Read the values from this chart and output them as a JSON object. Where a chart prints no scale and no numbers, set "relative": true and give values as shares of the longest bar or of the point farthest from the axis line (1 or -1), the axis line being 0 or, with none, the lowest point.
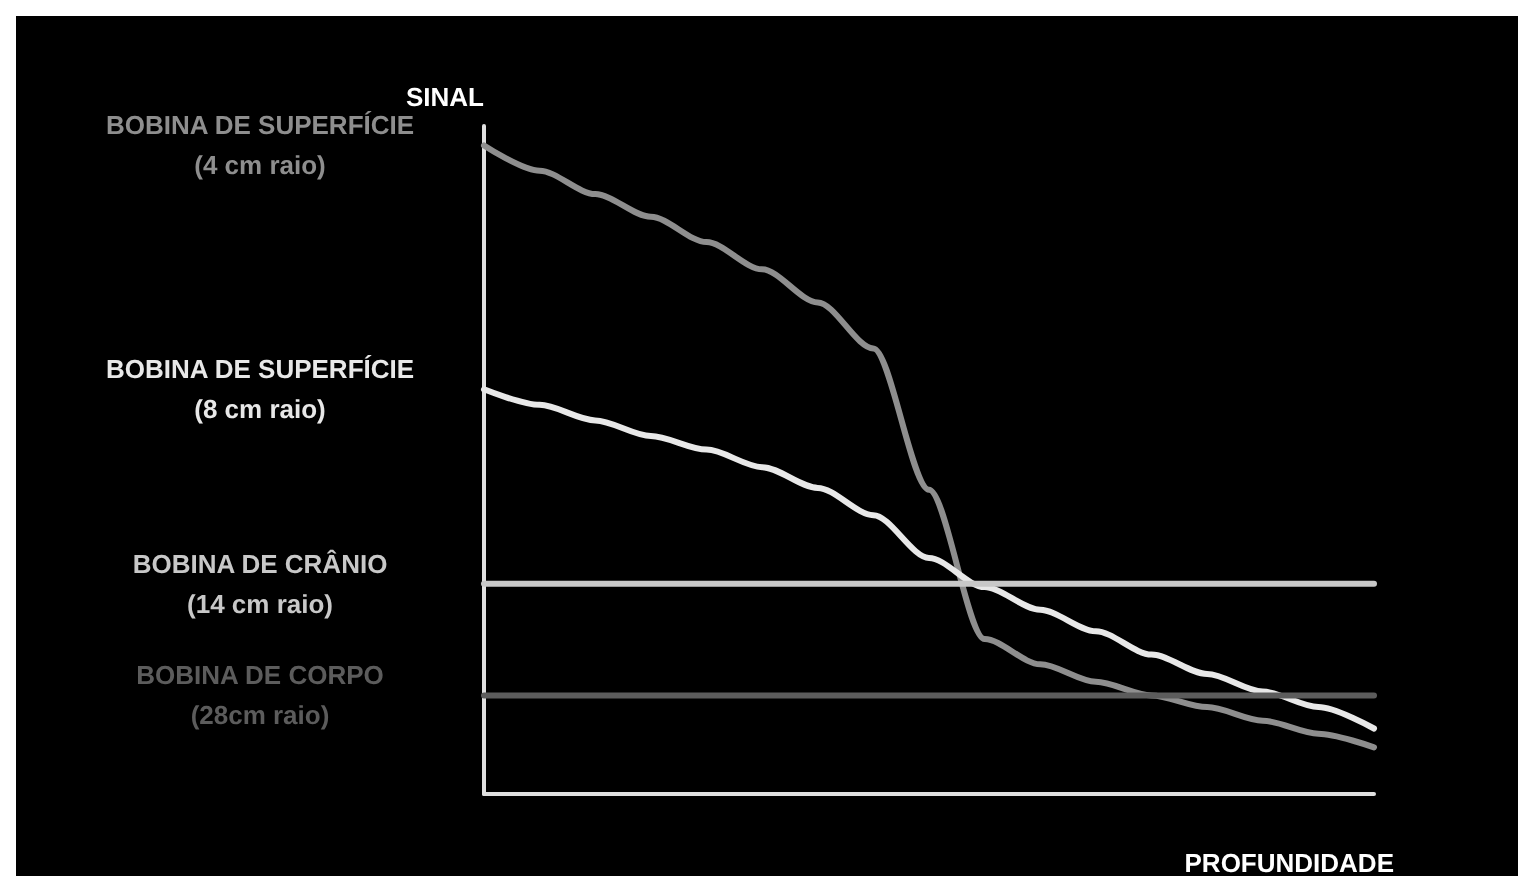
{
  "chart_data": {
    "type": "line",
    "relative": true,
    "xlabel": "PROFUNDIDADE",
    "ylabel": "SINAL",
    "categories": [
      null,
      null,
      null,
      null,
      null,
      null,
      null,
      null,
      null,
      null,
      null,
      null,
      null,
      null,
      null,
      null,
      null
    ],
    "series": [
      {
        "name": "BOBINA DE SUPERFÍCIE\n(4 cm raio)",
        "color": "#8e8e8e",
        "values": [
          1,
          0.961,
          0.925,
          0.89,
          0.851,
          0.809,
          0.758,
          0.687,
          0.469,
          0.239,
          0.2,
          0.173,
          0.152,
          0.134,
          0.113,
          0.093,
          0.072
        ]
      },
      {
        "name": "BOBINA DE SUPERFÍCIE\n(8 cm raio)",
        "color": "#e8e8e8",
        "values": [
          0.624,
          0.6,
          0.576,
          0.552,
          0.531,
          0.504,
          0.472,
          0.43,
          0.364,
          0.319,
          0.284,
          0.251,
          0.215,
          0.185,
          0.158,
          0.134,
          0.101
        ]
      },
      {
        "name": "BOBINA DE CRÂNIO\n(14 cm raio)",
        "color": "#c8c8c8",
        "values": [
          0.324,
          0.324,
          0.324,
          0.324,
          0.324,
          0.324,
          0.324,
          0.324,
          0.324,
          0.324,
          0.324,
          0.324,
          0.324,
          0.324,
          0.324,
          0.324,
          0.324
        ]
      },
      {
        "name": "BOBINA DE CORPO\n(28cm raio)",
        "color": "#5c5c5c",
        "values": [
          0.152,
          0.152,
          0.152,
          0.152,
          0.152,
          0.152,
          0.152,
          0.152,
          0.152,
          0.152,
          0.152,
          0.152,
          0.152,
          0.152,
          0.152,
          0.152,
          0.152
        ]
      }
    ],
    "grid": false,
    "legend": false,
    "marker": "none",
    "line_style": "solid"
  }
}
